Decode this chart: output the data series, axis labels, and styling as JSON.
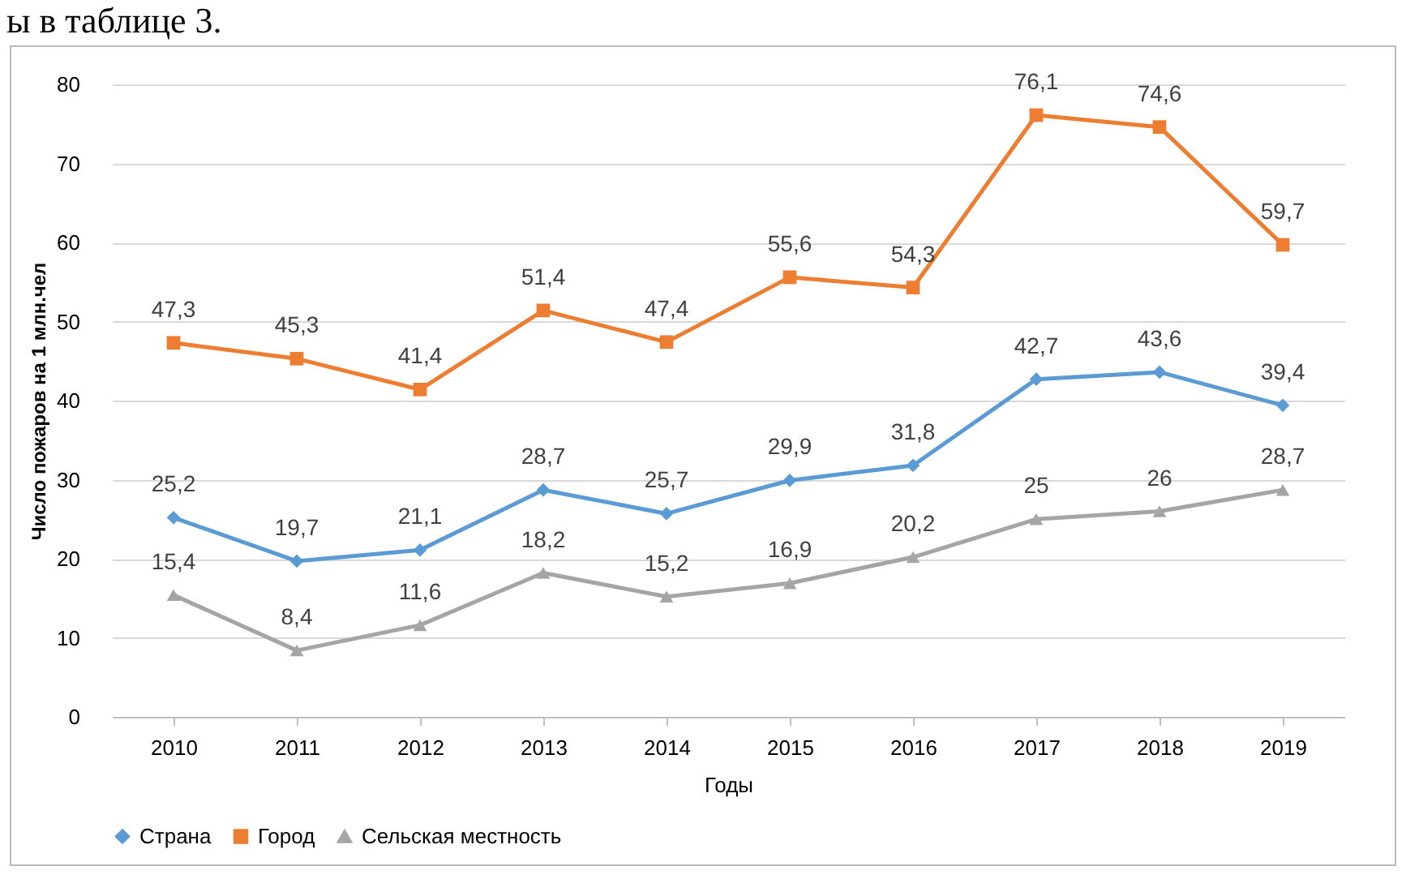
{
  "chart_data": {
    "type": "line",
    "xlabel": "Годы",
    "ylabel": "Число пожаров на 1 млн.чел",
    "annotations": [
      "ы в таблице 3."
    ],
    "categories": [
      "2010",
      "2011",
      "2012",
      "2013",
      "2014",
      "2015",
      "2016",
      "2017",
      "2018",
      "2019"
    ],
    "series": [
      {
        "name": "Страна",
        "color": "#5b9bd5",
        "marker": "diamond",
        "values": [
          25.2,
          19.7,
          21.1,
          28.7,
          25.7,
          29.9,
          31.8,
          42.7,
          43.6,
          39.4
        ],
        "value_labels": [
          "25,2",
          "19,7",
          "21,1",
          "28,7",
          "25,7",
          "29,9",
          "31,8",
          "42,7",
          "43,6",
          "39,4"
        ]
      },
      {
        "name": "Город",
        "color": "#ed7d31",
        "marker": "square",
        "values": [
          47.3,
          45.3,
          41.4,
          51.4,
          47.4,
          55.6,
          54.3,
          76.1,
          74.6,
          59.7
        ],
        "value_labels": [
          "47,3",
          "45,3",
          "41,4",
          "51,4",
          "47,4",
          "55,6",
          "54,3",
          "76,1",
          "74,6",
          "59,7"
        ]
      },
      {
        "name": "Сельская местность",
        "color": "#a5a5a5",
        "marker": "triangle",
        "values": [
          15.4,
          8.4,
          11.6,
          18.2,
          15.2,
          16.9,
          20.2,
          25,
          26,
          28.7
        ],
        "value_labels": [
          "15,4",
          "8,4",
          "11,6",
          "18,2",
          "15,2",
          "16,9",
          "20,2",
          "25",
          "26",
          "28,7"
        ]
      }
    ],
    "ylim": [
      0,
      80
    ],
    "yticks": [
      0,
      10,
      20,
      30,
      40,
      50,
      60,
      70,
      80
    ],
    "grid": "y",
    "legend": "bottom"
  }
}
